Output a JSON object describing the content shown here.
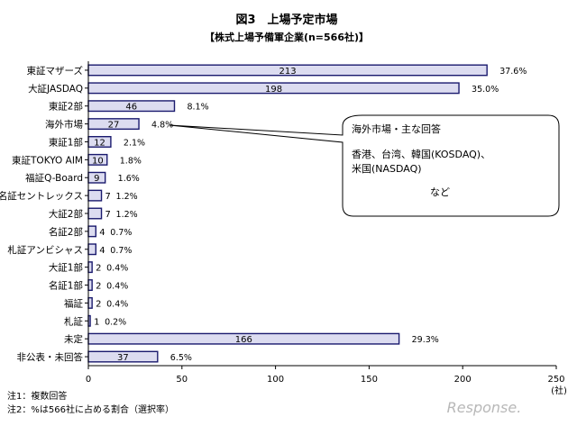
{
  "chart_data": {
    "type": "bar",
    "orientation": "horizontal",
    "title": "図3　上場予定市場",
    "subtitle": "【株式上場予備軍企業(n=566社)】",
    "categories": [
      "東証マザーズ",
      "大証JASDAQ",
      "東証2部",
      "海外市場",
      "東証1部",
      "東証TOKYO AIM",
      "福証Q-Board",
      "名証セントレックス",
      "大証2部",
      "名証2部",
      "札証アンビシャス",
      "大証1部",
      "名証1部",
      "福証",
      "札証",
      "未定",
      "非公表・未回答"
    ],
    "values": [
      213,
      198,
      46,
      27,
      12,
      10,
      9,
      7,
      7,
      4,
      4,
      2,
      2,
      2,
      1,
      166,
      37
    ],
    "value_labels": [
      "213",
      "198",
      "46",
      "27",
      "12",
      "10",
      "9",
      "7",
      "7",
      "4",
      "4",
      "2",
      "2",
      "2",
      "1",
      "166",
      "37"
    ],
    "percent_labels": [
      "37.6%",
      "35.0%",
      "8.1%",
      "4.8%",
      "2.1%",
      "1.8%",
      "1.6%",
      "1.2%",
      "1.2%",
      "0.7%",
      "0.7%",
      "0.4%",
      "0.4%",
      "0.4%",
      "0.2%",
      "29.3%",
      "6.5%"
    ],
    "xlim": [
      0,
      250
    ],
    "xticks": [
      "0",
      "50",
      "100",
      "150",
      "200",
      "250"
    ],
    "xunit": "(社)",
    "grid": false,
    "legend": "none",
    "bar_fill": "#dcdcf0",
    "bar_stroke": "#1a1a6e"
  },
  "callout": {
    "heading": "海外市場・主な回答",
    "line1": "香港、台湾、韓国(KOSDAQ)、",
    "line2": "米国(NASDAQ)",
    "line3": "など"
  },
  "notes": {
    "note1": "注1：複数回答",
    "note2": "注2：%は566社に占める割合（選択率）"
  },
  "watermark": "Response."
}
